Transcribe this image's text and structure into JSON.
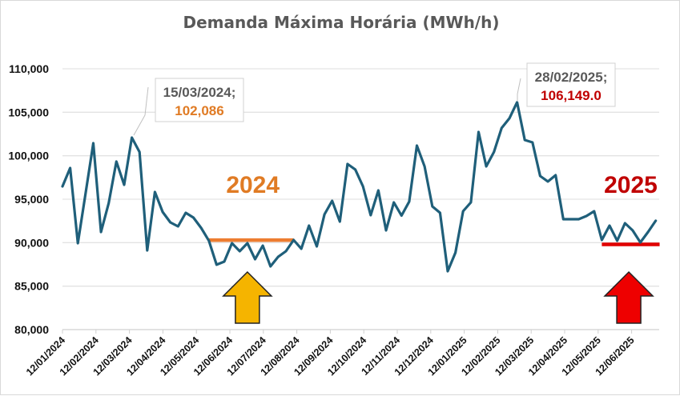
{
  "chart_data": {
    "type": "line",
    "title": "Demanda Máxima Horária (MWh/h)",
    "xlabel": "",
    "ylabel": "",
    "ylim": [
      80000,
      110000
    ],
    "yticks": [
      "80,000",
      "85,000",
      "90,000",
      "95,000",
      "100,000",
      "105,000",
      "110,000"
    ],
    "ytick_values": [
      80000,
      85000,
      90000,
      95000,
      100000,
      105000,
      110000
    ],
    "xticks": [
      "12/01/2024",
      "12/02/2024",
      "12/03/2024",
      "12/04/2024",
      "12/05/2024",
      "12/06/2024",
      "12/07/2024",
      "12/08/2024",
      "12/09/2024",
      "12/10/2024",
      "12/11/2024",
      "12/12/2024",
      "12/01/2025",
      "12/02/2025",
      "12/03/2025",
      "12/04/2025",
      "12/05/2025",
      "12/06/2025"
    ],
    "x_unit": "weeks since 12/01/2024",
    "x_range_weeks": [
      0,
      77.3
    ],
    "grid": true,
    "series": [
      {
        "name": "Demanda Máxima Horária",
        "color": "#1f5f7a",
        "values": [
          96470,
          98590,
          89940,
          95700,
          101440,
          91230,
          94540,
          99330,
          96660,
          102086,
          100430,
          89110,
          95830,
          93530,
          92330,
          91870,
          93440,
          92880,
          91690,
          90220,
          87460,
          87820,
          89940,
          89020,
          89940,
          88100,
          89660,
          87270,
          88380,
          89020,
          90310,
          89300,
          91960,
          89570,
          93250,
          94820,
          92420,
          99050,
          98410,
          96470,
          93160,
          96010,
          91410,
          94630,
          93110,
          94720,
          101170,
          98770,
          94170,
          93440,
          86720,
          88840,
          93620,
          94630,
          102730,
          98770,
          100430,
          103190,
          104300,
          106149,
          101810,
          101530,
          97670,
          97030,
          97760,
          92700,
          92700,
          92700,
          93070,
          93620,
          90310,
          91960,
          90220,
          92240,
          91410,
          90030,
          91230,
          92520
        ]
      }
    ],
    "annotations": [
      {
        "date": "15/03/2024;",
        "value": "102,086",
        "value_color": "#e07b24",
        "point_index": 9
      },
      {
        "date": "28/02/2025;",
        "value": "106,149.0",
        "value_color": "#c00000",
        "point_index": 59
      }
    ],
    "reference_lines": [
      {
        "label": "2024",
        "color": "#ed7d31",
        "value": 90300,
        "from_week": 19,
        "to_week": 30
      },
      {
        "label": "2025",
        "color": "#e00000",
        "value": 89800,
        "from_week": 70,
        "to_week": 77.5
      }
    ],
    "arrows": [
      {
        "color": "#f5b400",
        "at_week": 24
      },
      {
        "color": "#ee0000",
        "at_week": 73.5
      }
    ]
  }
}
